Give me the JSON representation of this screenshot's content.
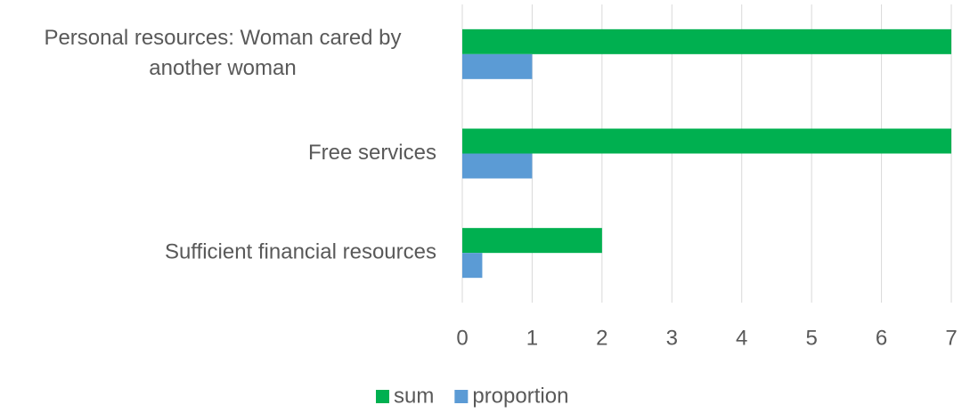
{
  "chart_data": {
    "type": "bar",
    "orientation": "horizontal",
    "categories": [
      "Personal resources: Woman cared by another woman",
      "Free services",
      "Sufficient financial resources"
    ],
    "series": [
      {
        "name": "sum",
        "color": "#00b050",
        "values": [
          7,
          7,
          2
        ]
      },
      {
        "name": "proportion",
        "color": "#5b9bd5",
        "values": [
          1,
          1,
          0.286
        ]
      }
    ],
    "xlim": [
      0,
      7
    ],
    "xticks": [
      0,
      1,
      2,
      3,
      4,
      5,
      6,
      7
    ],
    "grid": true,
    "legend": "bottom"
  }
}
